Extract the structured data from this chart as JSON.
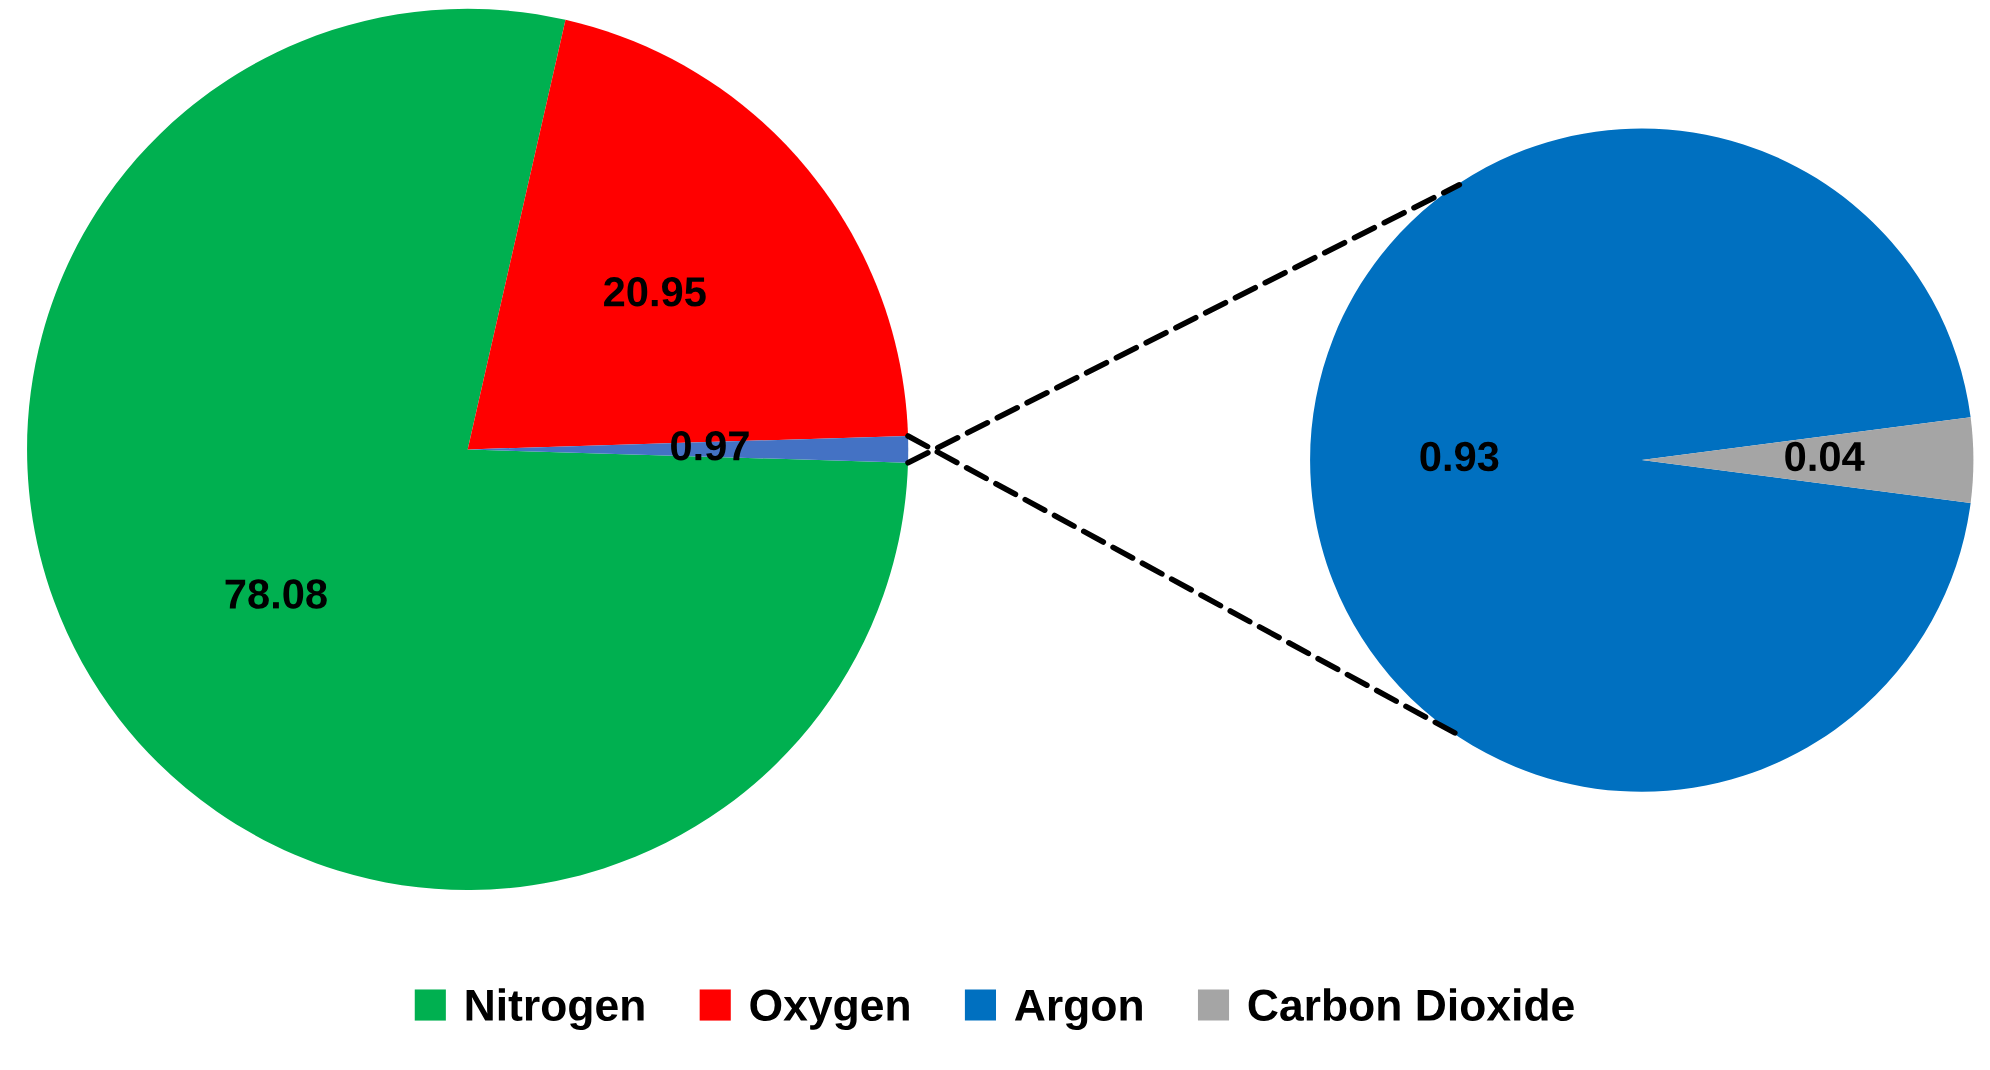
{
  "chart_data": [
    {
      "type": "pie",
      "categories": [
        "Nitrogen",
        "Oxygen",
        null
      ],
      "values": [
        78.08,
        20.95,
        0.97
      ],
      "colors": [
        "#00b050",
        "#ff0000",
        "#4472c4"
      ],
      "data_labels": true,
      "legend": "bottom"
    },
    {
      "type": "pie",
      "categories": [
        "Argon",
        "Carbon Dioxide"
      ],
      "values": [
        0.93,
        0.04
      ],
      "colors": [
        "#0070c0",
        "#a5a5a5"
      ],
      "data_labels": true,
      "legend": "bottom"
    }
  ]
}
